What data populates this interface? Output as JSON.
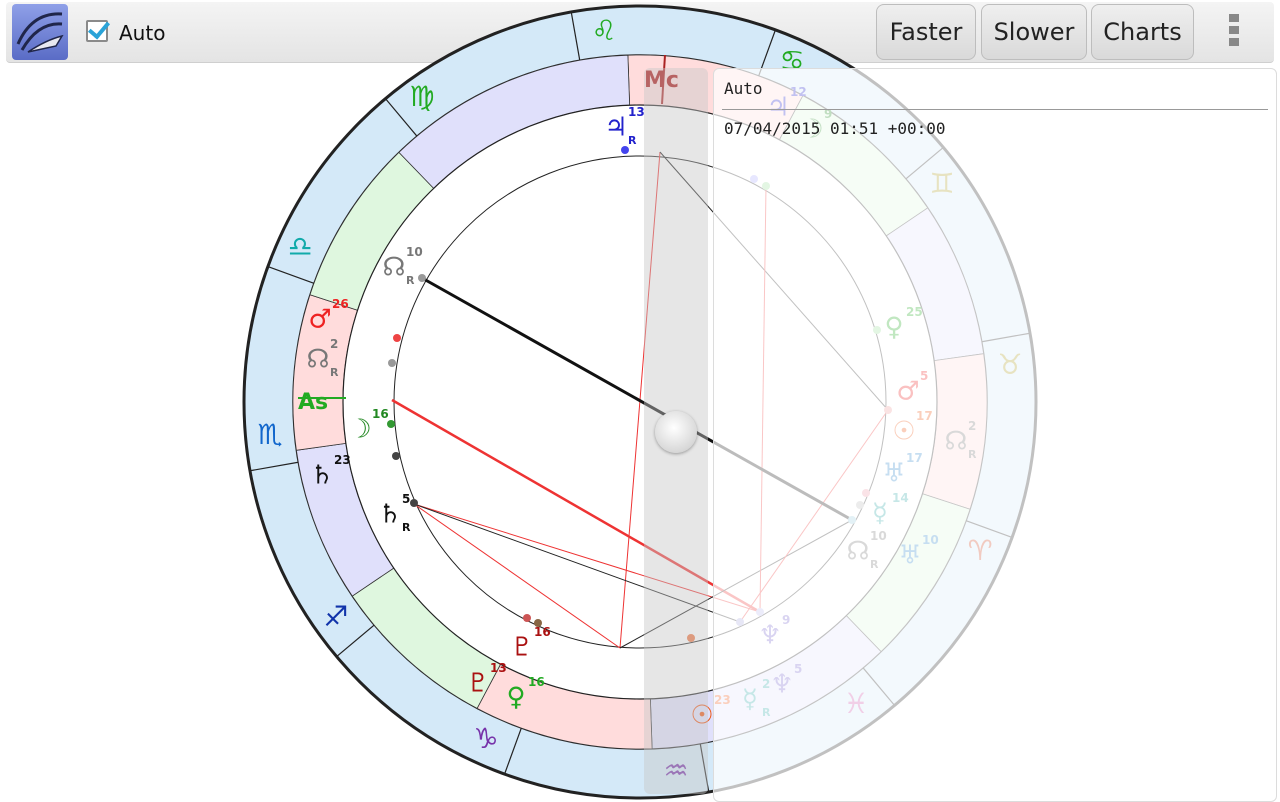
{
  "toolbar": {
    "auto_label": "Auto",
    "faster_label": "Faster",
    "slower_label": "Slower",
    "charts_label": "Charts"
  },
  "info": {
    "chart_name": "Auto",
    "datetime": "07/04/2015 01:51 +00:00"
  },
  "chart": {
    "angle_labels": {
      "ascendant": "As",
      "midheaven": "Mc"
    },
    "zodiac": [
      {
        "name": "leo-sign",
        "glyph": "♌",
        "color": "#22aa22"
      },
      {
        "name": "virgo-sign",
        "glyph": "♍",
        "color": "#22aa22"
      },
      {
        "name": "libra-sign",
        "glyph": "♎",
        "color": "#11aaaa"
      },
      {
        "name": "scorpio-sign",
        "glyph": "♏",
        "color": "#1166cc"
      },
      {
        "name": "sagittarius-sign",
        "glyph": "♐",
        "color": "#1133aa"
      },
      {
        "name": "capricorn-sign",
        "glyph": "♑",
        "color": "#7733aa"
      },
      {
        "name": "aquarius-sign",
        "glyph": "♒",
        "color": "#7733aa"
      },
      {
        "name": "pisces-sign",
        "glyph": "♓",
        "color": "#cc55aa"
      },
      {
        "name": "aries-sign",
        "glyph": "♈",
        "color": "#cc4422"
      },
      {
        "name": "taurus-sign",
        "glyph": "♉",
        "color": "#aa9922"
      },
      {
        "name": "gemini-sign",
        "glyph": "♊",
        "color": "#aa9922"
      },
      {
        "name": "cancer-sign",
        "glyph": "♋",
        "color": "#22aa22"
      }
    ],
    "planets": [
      {
        "name": "jupiter-glyph",
        "glyph": "♃",
        "degree": "13",
        "retro": "R",
        "color": "#2222cc"
      },
      {
        "name": "north-node-glyph",
        "glyph": "☊",
        "degree": "10",
        "retro": "R",
        "color": "#777777"
      },
      {
        "name": "mars-glyph",
        "glyph": "♂",
        "degree": "26",
        "retro": "",
        "color": "#ee2222"
      },
      {
        "name": "north-node-2-glyph",
        "glyph": "☊",
        "degree": "2",
        "retro": "R",
        "color": "#777777"
      },
      {
        "name": "moon-glyph",
        "glyph": "☽",
        "degree": "16",
        "retro": "",
        "color": "#228822"
      },
      {
        "name": "saturn-glyph",
        "glyph": "♄",
        "degree": "23",
        "retro": "",
        "color": "#111111"
      },
      {
        "name": "saturn-2-glyph",
        "glyph": "♄",
        "degree": "5",
        "retro": "R",
        "color": "#111111"
      },
      {
        "name": "pluto-glyph",
        "glyph": "♇",
        "degree": "16",
        "retro": "",
        "color": "#aa1111"
      },
      {
        "name": "pluto-2-glyph",
        "glyph": "♇",
        "degree": "13",
        "retro": "",
        "color": "#aa1111"
      },
      {
        "name": "venus-glyph",
        "glyph": "♀",
        "degree": "16",
        "retro": "",
        "color": "#22aa22"
      },
      {
        "name": "sun-glyph",
        "glyph": "☉",
        "degree": "23",
        "retro": "",
        "color": "#ee5511"
      },
      {
        "name": "neptune-glyph",
        "glyph": "♆",
        "degree": "9",
        "retro": "",
        "color": "#7766cc"
      },
      {
        "name": "neptune-2-glyph",
        "glyph": "♆",
        "degree": "5",
        "retro": "",
        "color": "#7766cc"
      },
      {
        "name": "mercury-glyph",
        "glyph": "☿",
        "degree": "2",
        "retro": "R",
        "color": "#33aaaa"
      },
      {
        "name": "uranus-glyph",
        "glyph": "♅",
        "degree": "10",
        "retro": "",
        "color": "#3388cc"
      },
      {
        "name": "north-node-3-glyph",
        "glyph": "☊",
        "degree": "10",
        "retro": "R",
        "color": "#777777"
      },
      {
        "name": "mercury-2-glyph",
        "glyph": "☿",
        "degree": "14",
        "retro": "",
        "color": "#33aaaa"
      },
      {
        "name": "uranus-2-glyph",
        "glyph": "♅",
        "degree": "17",
        "retro": "",
        "color": "#3388cc"
      },
      {
        "name": "north-node-4-glyph",
        "glyph": "☊",
        "degree": "2",
        "retro": "R",
        "color": "#777777"
      },
      {
        "name": "sun-2-glyph",
        "glyph": "☉",
        "degree": "17",
        "retro": "",
        "color": "#ee5511"
      },
      {
        "name": "mars-2-glyph",
        "glyph": "♂",
        "degree": "5",
        "retro": "",
        "color": "#ee2222"
      },
      {
        "name": "venus-2-glyph",
        "glyph": "♀",
        "degree": "25",
        "retro": "",
        "color": "#22aa22"
      },
      {
        "name": "moon-2-glyph",
        "glyph": "☽",
        "degree": "9",
        "retro": "",
        "color": "#228822"
      },
      {
        "name": "jupiter-2-glyph",
        "glyph": "♃",
        "degree": "12",
        "retro": "",
        "color": "#2222cc"
      }
    ]
  }
}
